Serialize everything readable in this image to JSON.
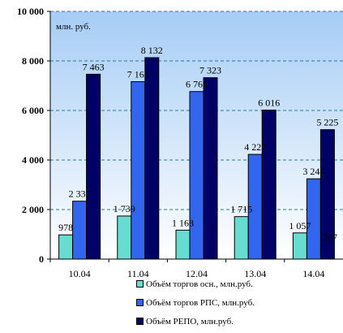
{
  "chart_data": {
    "type": "bar",
    "unit_label": "млн. руб.",
    "categories": [
      "10.04",
      "11.04",
      "12.04",
      "13.04",
      "14.04"
    ],
    "series": [
      {
        "name": "Объём торгов осн., млн.руб.",
        "color": "#66ddd0",
        "values": [
          978,
          1739,
          1168,
          1715,
          1057
        ],
        "labels": [
          "978",
          "1 739",
          "1 168",
          "1 715",
          "1 057"
        ]
      },
      {
        "name": "Объём торгов РПС, млн.руб.",
        "color": "#3366ee",
        "values": [
          2337,
          7163,
          6763,
          4227,
          3241
        ],
        "labels": [
          "2 337",
          "7 163",
          "6 763",
          "4 227",
          "3 241"
        ]
      },
      {
        "name": "Объём РЕПО, млн.руб.",
        "color": "#000066",
        "values": [
          7463,
          8132,
          7323,
          6016,
          5225
        ],
        "labels": [
          "7 463",
          "8 132",
          "7 323",
          "6 016",
          "5 225"
        ]
      }
    ],
    "ylim": [
      0,
      10000
    ],
    "yticks": [
      0,
      2000,
      4000,
      6000,
      8000,
      10000
    ],
    "ytick_labels": [
      "0",
      "2 000",
      "4 000",
      "6 000",
      "8 000",
      "10 000"
    ],
    "annotation": "207",
    "grid": true,
    "legend_position": "bottom"
  }
}
